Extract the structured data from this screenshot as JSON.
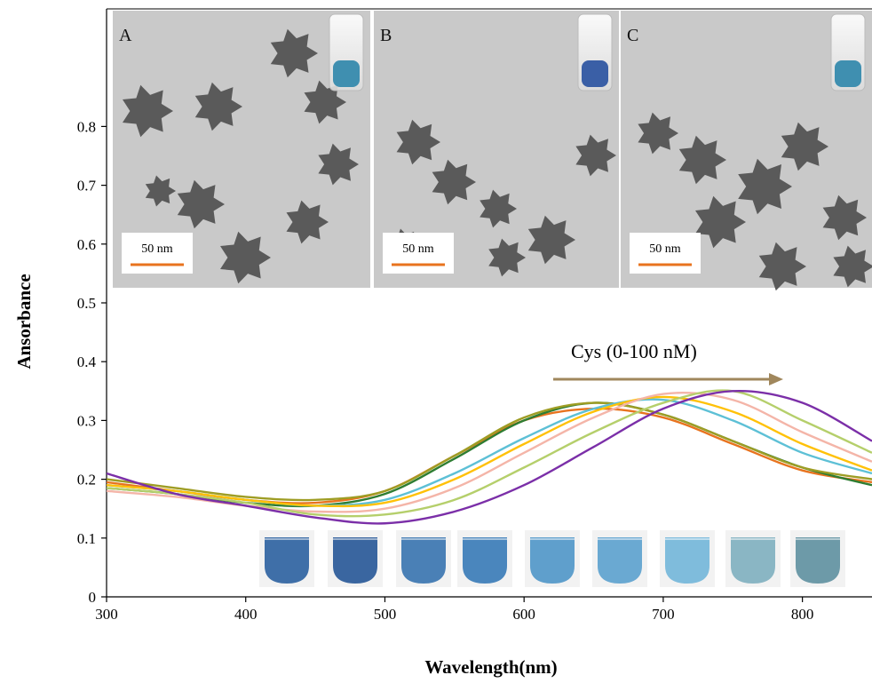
{
  "chart_data": {
    "type": "line",
    "xlabel": "Wavelength(nm)",
    "ylabel": "Ansorbance",
    "xlim": [
      300,
      850
    ],
    "ylim": [
      0,
      1.0
    ],
    "xticks": [
      "300",
      "400",
      "500",
      "600",
      "700",
      "800"
    ],
    "yticks": [
      "0",
      "0.1",
      "0.2",
      "0.3",
      "0.4",
      "0.5",
      "0.6",
      "0.7",
      "0.8"
    ],
    "annotation": "Cys (0-100 nM)",
    "series": [
      {
        "color": "#e8731e",
        "x": [
          300,
          350,
          400,
          450,
          500,
          550,
          600,
          650,
          700,
          750,
          800,
          850
        ],
        "y": [
          0.195,
          0.18,
          0.165,
          0.16,
          0.18,
          0.24,
          0.3,
          0.32,
          0.305,
          0.26,
          0.215,
          0.195
        ]
      },
      {
        "color": "#2e7d32",
        "x": [
          300,
          350,
          400,
          450,
          500,
          550,
          600,
          650,
          700,
          750,
          800,
          850
        ],
        "y": [
          0.185,
          0.175,
          0.16,
          0.155,
          0.175,
          0.235,
          0.3,
          0.33,
          0.31,
          0.265,
          0.22,
          0.19
        ]
      },
      {
        "color": "#9e9d24",
        "x": [
          300,
          350,
          400,
          450,
          500,
          550,
          600,
          650,
          700,
          750,
          800,
          850
        ],
        "y": [
          0.2,
          0.185,
          0.17,
          0.165,
          0.18,
          0.24,
          0.305,
          0.33,
          0.31,
          0.265,
          0.22,
          0.2
        ]
      },
      {
        "color": "#5dc0d6",
        "x": [
          300,
          350,
          400,
          450,
          500,
          550,
          600,
          650,
          700,
          750,
          800,
          850
        ],
        "y": [
          0.19,
          0.18,
          0.165,
          0.155,
          0.165,
          0.21,
          0.27,
          0.32,
          0.335,
          0.3,
          0.245,
          0.21
        ]
      },
      {
        "color": "#ffc107",
        "x": [
          300,
          350,
          400,
          450,
          500,
          550,
          600,
          650,
          700,
          750,
          800,
          850
        ],
        "y": [
          0.19,
          0.18,
          0.165,
          0.155,
          0.16,
          0.2,
          0.26,
          0.315,
          0.34,
          0.315,
          0.26,
          0.215
        ]
      },
      {
        "color": "#f4b5a8",
        "x": [
          300,
          350,
          400,
          450,
          500,
          550,
          600,
          650,
          700,
          750,
          800,
          850
        ],
        "y": [
          0.18,
          0.17,
          0.155,
          0.145,
          0.15,
          0.185,
          0.245,
          0.305,
          0.345,
          0.335,
          0.28,
          0.23
        ]
      },
      {
        "color": "#b5cf6b",
        "x": [
          300,
          350,
          400,
          450,
          500,
          550,
          600,
          650,
          700,
          750,
          800,
          850
        ],
        "y": [
          0.185,
          0.175,
          0.16,
          0.14,
          0.14,
          0.165,
          0.22,
          0.28,
          0.33,
          0.35,
          0.3,
          0.245
        ]
      },
      {
        "color": "#7b2fa8",
        "x": [
          300,
          350,
          400,
          450,
          500,
          550,
          600,
          650,
          700,
          750,
          800,
          850
        ],
        "y": [
          0.21,
          0.175,
          0.155,
          0.135,
          0.125,
          0.145,
          0.19,
          0.255,
          0.32,
          0.35,
          0.33,
          0.265
        ]
      }
    ]
  },
  "panels": [
    {
      "letter": "A",
      "scale": "50 nm"
    },
    {
      "letter": "B",
      "scale": "50 nm"
    },
    {
      "letter": "C",
      "scale": "50 nm"
    }
  ],
  "vials": [
    "#3f6fa8",
    "#3a66a0",
    "#4a80b6",
    "#4a86bd",
    "#5f9fcc",
    "#6aa9d2",
    "#7fbcdc",
    "#8ab6c4",
    "#6d9aa8"
  ],
  "colors": {
    "arrow": "#a0875c",
    "scale_bar": "#e8731e",
    "tem_bg": "#c9c9c9",
    "particle": "#5a5a5a"
  }
}
